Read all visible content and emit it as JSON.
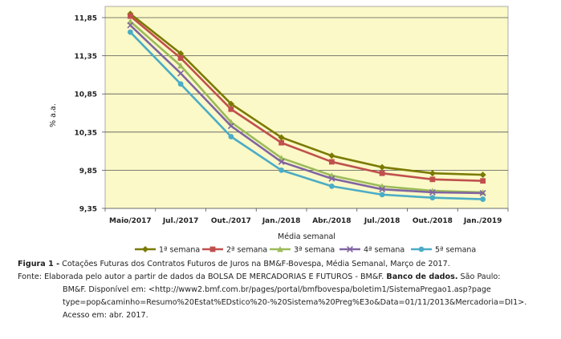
{
  "chart_data": {
    "type": "line",
    "title": "",
    "xlabel": "Média semanal",
    "ylabel": "% a.a.",
    "categories": [
      "Maio/2017",
      "Jul./2017",
      "Out./2017",
      "Jan./2018",
      "Abr./2018",
      "Jul./2018",
      "Out./2018",
      "Jan./2019"
    ],
    "yticks": [
      "9,35",
      "9,85",
      "10,35",
      "10,85",
      "11,35",
      "11,85"
    ],
    "ylim": [
      9.35,
      11.85
    ],
    "grid": true,
    "legend_position": "bottom",
    "series": [
      {
        "name": "1ª semana",
        "color": "#7a7a00",
        "marker": "diamond",
        "values": [
          11.9,
          11.38,
          10.72,
          10.28,
          10.04,
          9.89,
          9.81,
          9.79
        ]
      },
      {
        "name": "2ª semana",
        "color": "#c0504d",
        "marker": "square",
        "values": [
          11.87,
          11.32,
          10.65,
          10.21,
          9.96,
          9.81,
          9.73,
          9.71
        ]
      },
      {
        "name": "3ª semana",
        "color": "#9bbb59",
        "marker": "triangle",
        "values": [
          11.8,
          11.22,
          10.48,
          10.01,
          9.78,
          9.64,
          9.58,
          9.56
        ]
      },
      {
        "name": "4ª semana",
        "color": "#8064a2",
        "marker": "x",
        "values": [
          11.75,
          11.12,
          10.43,
          9.96,
          9.74,
          9.6,
          9.56,
          9.55
        ]
      },
      {
        "name": "5ª semana",
        "color": "#4bacc6",
        "marker": "circle",
        "values": [
          11.66,
          10.98,
          10.29,
          9.85,
          9.64,
          9.53,
          9.49,
          9.47
        ]
      }
    ]
  },
  "caption": {
    "figure_label": "Figura 1 -",
    "figure_text": " Cotações Futuras dos Contratos Futuros de Juros na BM&F-Bovespa, Média Semanal, Março de 2017.",
    "source_label": "Fonte:",
    "source_text": " Elaborada pelo autor a partir de dados da BOLSA DE MERCADORIAS E FUTUROS - BM&F. ",
    "source_bold": "Banco de dados.",
    "source_after_bold": " São Paulo:",
    "line2": "BM&F.   Disponível   em:   <http://www2.bmf.com.br/pages/portal/bmfbovespa/boletim1/SistemaPregao1.asp?page",
    "line3": "type=pop&caminho=Resumo%20Estat%EDstico%20-%20Sistema%20Preg%E3o&Data=01/11/2013&Mercadoria=DI1>.",
    "line4": "Acesso em: abr. 2017."
  }
}
